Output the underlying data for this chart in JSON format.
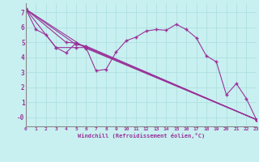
{
  "xlabel": "Windchill (Refroidissement éolien,°C)",
  "background_color": "#c8f0f0",
  "line_color": "#993399",
  "grid_color": "#aadddd",
  "xlim": [
    0,
    23
  ],
  "ylim": [
    -0.6,
    7.6
  ],
  "xticks": [
    0,
    1,
    2,
    3,
    4,
    5,
    6,
    7,
    8,
    9,
    10,
    11,
    12,
    13,
    14,
    15,
    16,
    17,
    18,
    19,
    20,
    21,
    22,
    23
  ],
  "yticks": [
    0,
    1,
    2,
    3,
    4,
    5,
    6,
    7
  ],
  "series": [
    [
      0,
      7.2
    ],
    [
      1,
      5.85
    ],
    [
      2,
      5.5
    ],
    [
      3,
      4.65
    ],
    [
      4,
      4.3
    ],
    [
      5,
      4.95
    ],
    [
      6,
      4.65
    ],
    [
      7,
      3.1
    ],
    [
      8,
      3.2
    ],
    [
      9,
      4.35
    ],
    [
      10,
      5.1
    ],
    [
      11,
      5.35
    ],
    [
      12,
      5.75
    ],
    [
      13,
      5.85
    ],
    [
      14,
      5.8
    ],
    [
      15,
      6.2
    ],
    [
      16,
      5.85
    ],
    [
      17,
      5.3
    ],
    [
      18,
      4.1
    ],
    [
      19,
      3.7
    ],
    [
      20,
      1.5
    ],
    [
      21,
      2.25
    ],
    [
      22,
      1.25
    ],
    [
      23,
      -0.15
    ]
  ],
  "line2": [
    [
      0,
      7.2
    ],
    [
      3,
      4.65
    ],
    [
      5,
      4.65
    ],
    [
      6,
      4.65
    ],
    [
      23,
      -0.15
    ]
  ],
  "line3": [
    [
      0,
      7.2
    ],
    [
      4,
      5.0
    ],
    [
      5,
      4.95
    ],
    [
      6,
      4.7
    ],
    [
      23,
      -0.15
    ]
  ],
  "line4": [
    [
      0,
      7.2
    ],
    [
      5,
      4.85
    ],
    [
      6,
      4.75
    ],
    [
      23,
      -0.15
    ]
  ],
  "line5": [
    [
      0,
      7.2
    ],
    [
      6,
      4.6
    ],
    [
      23,
      -0.15
    ]
  ]
}
